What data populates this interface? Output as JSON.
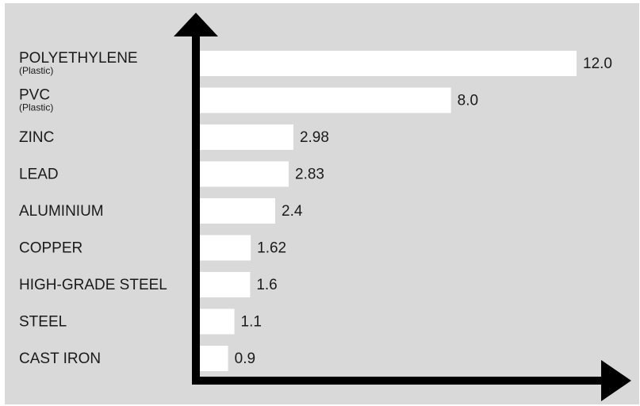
{
  "colors": {
    "background": "#d9d9d9",
    "bar": "#ffffff",
    "axis": "#000000",
    "text": "#1a1a1a"
  },
  "chart_data": {
    "type": "bar",
    "orientation": "horizontal",
    "title": "",
    "xlabel": "",
    "ylabel": "",
    "grid": false,
    "xlim": [
      0,
      12.0
    ],
    "categories": [
      {
        "label": "POLYETHYLENE",
        "sublabel": "(Plastic)"
      },
      {
        "label": "PVC",
        "sublabel": "(Plastic)"
      },
      {
        "label": "ZINC",
        "sublabel": ""
      },
      {
        "label": "LEAD",
        "sublabel": ""
      },
      {
        "label": "ALUMINIUM",
        "sublabel": ""
      },
      {
        "label": "COPPER",
        "sublabel": ""
      },
      {
        "label": "HIGH-GRADE STEEL",
        "sublabel": ""
      },
      {
        "label": "STEEL",
        "sublabel": ""
      },
      {
        "label": "CAST IRON",
        "sublabel": ""
      }
    ],
    "values": [
      12.0,
      8.0,
      2.98,
      2.83,
      2.4,
      1.62,
      1.6,
      1.1,
      0.9
    ],
    "value_labels": [
      "12.0",
      "8.0",
      "2.98",
      "2.83",
      "2.4",
      "1.62",
      "1.6",
      "1.1",
      "0.9"
    ]
  }
}
